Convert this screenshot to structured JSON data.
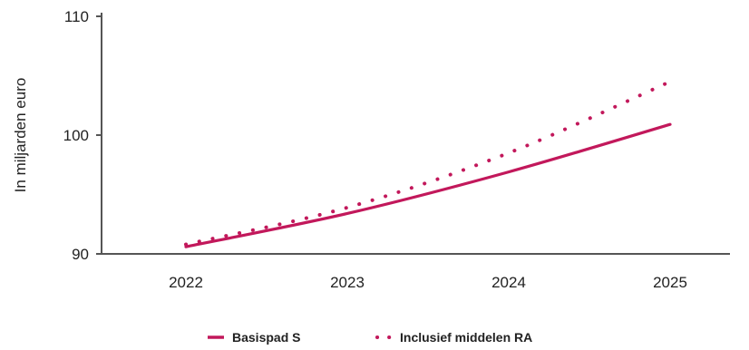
{
  "chart_data": {
    "type": "line",
    "x": [
      "2022",
      "2023",
      "2024",
      "2025"
    ],
    "series": [
      {
        "name": "Basispad S",
        "style": "solid",
        "color": "#c2185b",
        "values": [
          90.6,
          93.4,
          96.9,
          100.9
        ]
      },
      {
        "name": "Inclusief middelen RA",
        "style": "dotted",
        "color": "#c2185b",
        "values": [
          90.8,
          93.9,
          98.5,
          104.5
        ]
      }
    ],
    "yticks": [
      90,
      100,
      110
    ],
    "ylim": [
      90,
      110
    ],
    "xlabel": "",
    "ylabel": "In miljarden euro",
    "grid": false,
    "legend_position": "bottom-center",
    "axis_color": "#555555"
  }
}
